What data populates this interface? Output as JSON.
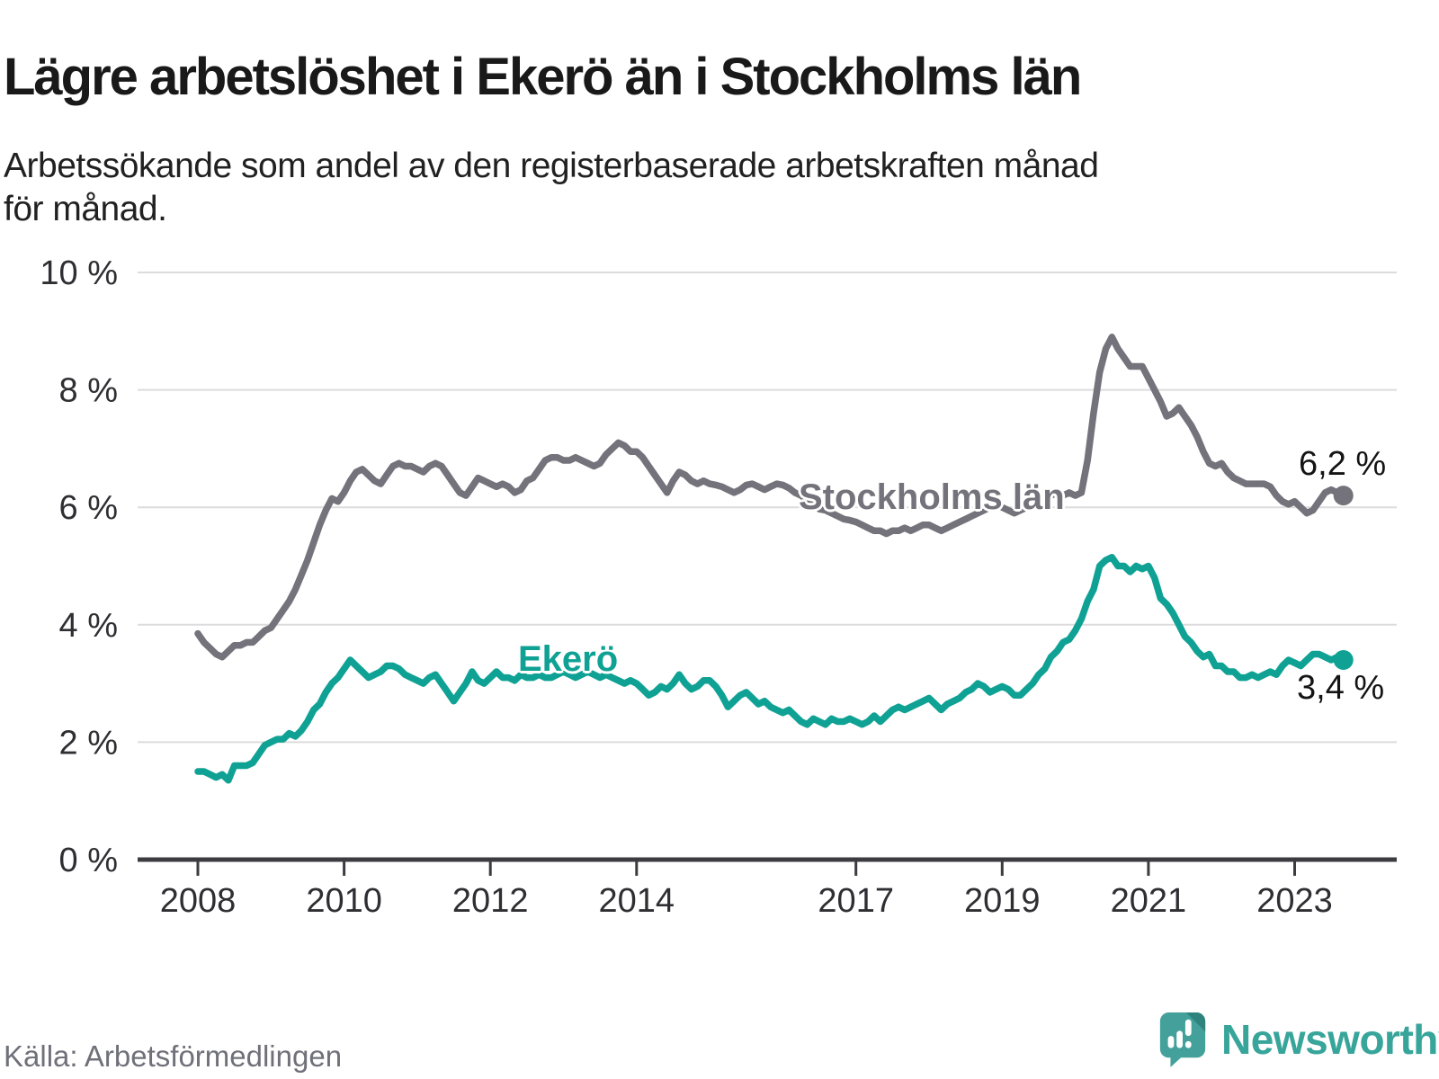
{
  "footer": {
    "source": "Källa: Arbetsförmedlingen",
    "brand": "Newsworthy"
  },
  "chart_data": {
    "type": "line",
    "title": "Lägre arbetslöshet i Ekerö än i Stockholms län",
    "subtitle_lines": [
      "Arbetssökande som andel av den registerbaserade arbetskraften månad",
      "för månad."
    ],
    "unit": "percent",
    "frequency": "monthly",
    "start": "2008-01",
    "end": "2023-09",
    "ylim": [
      0,
      10
    ],
    "grid": true,
    "legend": "inline-labels",
    "colors": {
      "accent_teal": "#0fa294",
      "accent_gray": "#74737b",
      "axis": "#3b3b40",
      "gridline": "#dcdcdd"
    },
    "y_ticks": [
      {
        "value": 0,
        "label": "0 %"
      },
      {
        "value": 2,
        "label": "2 %"
      },
      {
        "value": 4,
        "label": "4 %"
      },
      {
        "value": 6,
        "label": "6 %"
      },
      {
        "value": 8,
        "label": "8 %"
      },
      {
        "value": 10,
        "label": "10 %"
      }
    ],
    "x_ticks": [
      {
        "year": 2008,
        "label": "2008"
      },
      {
        "year": 2010,
        "label": "2010"
      },
      {
        "year": 2012,
        "label": "2012"
      },
      {
        "year": 2014,
        "label": "2014"
      },
      {
        "year": 2017,
        "label": "2017"
      },
      {
        "year": 2019,
        "label": "2019"
      },
      {
        "year": 2021,
        "label": "2021"
      },
      {
        "year": 2023,
        "label": "2023"
      }
    ],
    "series": [
      {
        "name": "Stockholms län",
        "color": "#74737b",
        "end_label": "6,2 %",
        "end_value": 6.2,
        "values": [
          3.85,
          3.7,
          3.6,
          3.5,
          3.45,
          3.55,
          3.65,
          3.65,
          3.7,
          3.7,
          3.8,
          3.9,
          3.95,
          4.1,
          4.25,
          4.4,
          4.6,
          4.85,
          5.1,
          5.4,
          5.7,
          5.95,
          6.15,
          6.1,
          6.25,
          6.45,
          6.6,
          6.65,
          6.55,
          6.45,
          6.4,
          6.55,
          6.7,
          6.75,
          6.7,
          6.7,
          6.65,
          6.6,
          6.7,
          6.75,
          6.7,
          6.55,
          6.4,
          6.25,
          6.2,
          6.35,
          6.5,
          6.45,
          6.4,
          6.35,
          6.4,
          6.35,
          6.25,
          6.3,
          6.45,
          6.5,
          6.65,
          6.8,
          6.85,
          6.85,
          6.8,
          6.8,
          6.85,
          6.8,
          6.75,
          6.7,
          6.75,
          6.9,
          7.0,
          7.1,
          7.05,
          6.95,
          6.95,
          6.85,
          6.7,
          6.55,
          6.4,
          6.25,
          6.45,
          6.6,
          6.55,
          6.45,
          6.4,
          6.45,
          6.4,
          6.38,
          6.35,
          6.3,
          6.25,
          6.3,
          6.38,
          6.4,
          6.35,
          6.3,
          6.35,
          6.4,
          6.38,
          6.33,
          6.25,
          6.2,
          6.12,
          6.05,
          5.97,
          5.95,
          5.9,
          5.85,
          5.8,
          5.78,
          5.75,
          5.7,
          5.65,
          5.6,
          5.6,
          5.55,
          5.6,
          5.6,
          5.65,
          5.6,
          5.65,
          5.7,
          5.7,
          5.65,
          5.6,
          5.65,
          5.7,
          5.75,
          5.8,
          5.85,
          5.9,
          5.95,
          6.0,
          6.05,
          6.0,
          5.95,
          5.9,
          5.95,
          6.0,
          6.05,
          6.1,
          6.15,
          6.2,
          6.25,
          6.2,
          6.25,
          6.2,
          6.25,
          6.8,
          7.6,
          8.3,
          8.7,
          8.9,
          8.7,
          8.55,
          8.4,
          8.4,
          8.4,
          8.2,
          8.0,
          7.8,
          7.55,
          7.6,
          7.7,
          7.55,
          7.4,
          7.2,
          6.95,
          6.75,
          6.7,
          6.75,
          6.6,
          6.5,
          6.45,
          6.4,
          6.4,
          6.4,
          6.4,
          6.35,
          6.2,
          6.1,
          6.05,
          6.1,
          6.0,
          5.9,
          5.95,
          6.1,
          6.25,
          6.3,
          6.25,
          6.2
        ]
      },
      {
        "name": "Ekerö",
        "color": "#0fa294",
        "end_label": "3,4 %",
        "end_value": 3.4,
        "values": [
          1.5,
          1.5,
          1.45,
          1.4,
          1.45,
          1.35,
          1.6,
          1.6,
          1.6,
          1.65,
          1.8,
          1.95,
          2.0,
          2.05,
          2.05,
          2.15,
          2.1,
          2.2,
          2.35,
          2.55,
          2.65,
          2.85,
          3.0,
          3.1,
          3.25,
          3.4,
          3.3,
          3.2,
          3.1,
          3.15,
          3.2,
          3.3,
          3.3,
          3.25,
          3.15,
          3.1,
          3.05,
          3.0,
          3.1,
          3.15,
          3.0,
          2.85,
          2.7,
          2.85,
          3.0,
          3.2,
          3.05,
          3.0,
          3.1,
          3.2,
          3.1,
          3.1,
          3.05,
          3.15,
          3.1,
          3.1,
          3.15,
          3.1,
          3.1,
          3.15,
          3.2,
          3.15,
          3.1,
          3.15,
          3.2,
          3.15,
          3.1,
          3.15,
          3.1,
          3.05,
          3.0,
          3.05,
          3.0,
          2.9,
          2.8,
          2.85,
          2.95,
          2.9,
          3.0,
          3.15,
          3.0,
          2.9,
          2.95,
          3.05,
          3.05,
          2.95,
          2.8,
          2.6,
          2.7,
          2.8,
          2.85,
          2.75,
          2.65,
          2.7,
          2.6,
          2.55,
          2.5,
          2.55,
          2.45,
          2.35,
          2.3,
          2.4,
          2.35,
          2.3,
          2.4,
          2.35,
          2.35,
          2.4,
          2.35,
          2.3,
          2.35,
          2.45,
          2.35,
          2.45,
          2.55,
          2.6,
          2.55,
          2.6,
          2.65,
          2.7,
          2.75,
          2.65,
          2.55,
          2.65,
          2.7,
          2.75,
          2.85,
          2.9,
          3.0,
          2.95,
          2.85,
          2.9,
          2.95,
          2.9,
          2.8,
          2.8,
          2.9,
          3.0,
          3.15,
          3.25,
          3.45,
          3.55,
          3.7,
          3.75,
          3.9,
          4.1,
          4.4,
          4.6,
          5.0,
          5.1,
          5.15,
          5.0,
          5.0,
          4.9,
          5.0,
          4.95,
          5.0,
          4.8,
          4.45,
          4.35,
          4.2,
          4.0,
          3.8,
          3.7,
          3.55,
          3.45,
          3.5,
          3.3,
          3.3,
          3.2,
          3.2,
          3.1,
          3.1,
          3.15,
          3.1,
          3.15,
          3.2,
          3.15,
          3.3,
          3.4,
          3.35,
          3.3,
          3.4,
          3.5,
          3.5,
          3.45,
          3.4,
          3.45,
          3.4
        ]
      }
    ]
  }
}
